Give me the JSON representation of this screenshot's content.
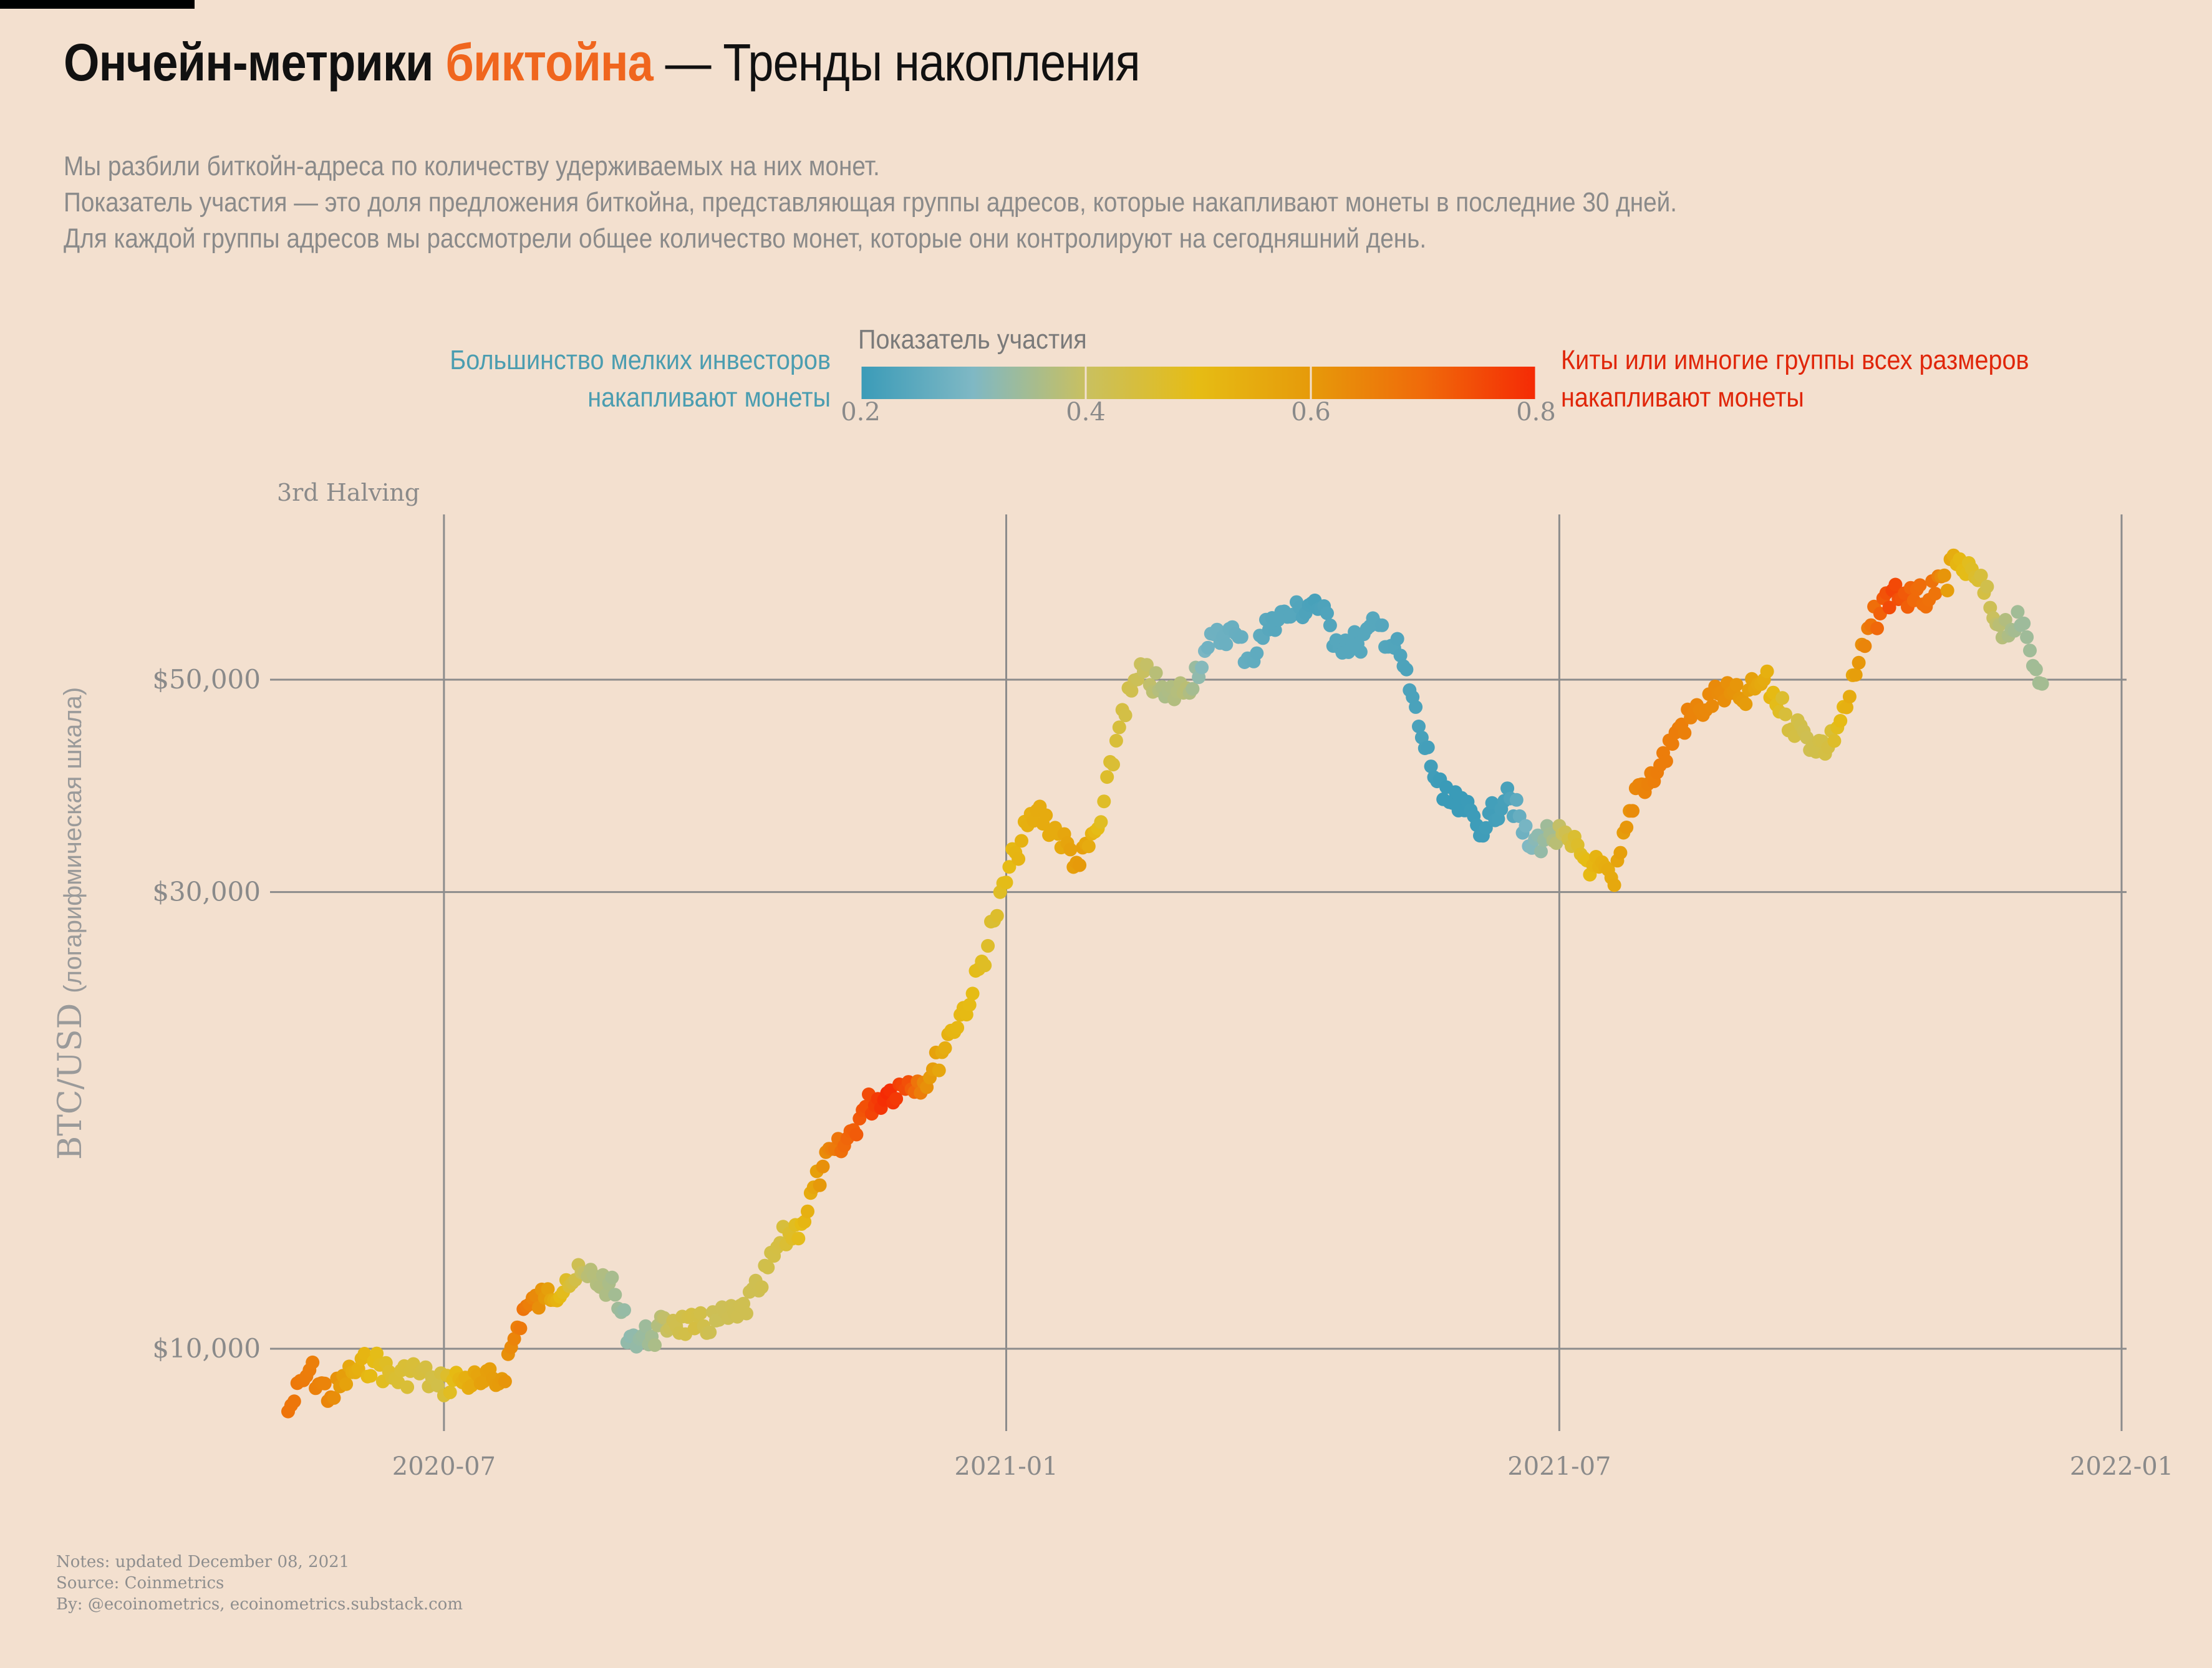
{
  "header": {
    "title_part1": "Ончейн-метрики ",
    "title_part2": "биктойна",
    "title_part3": " — Тренды накопления",
    "description": [
      "Мы разбили биткойн-адреса по количеству удерживаемых на них монет.",
      "Показатель участия — это доля предложения биткойна, представляющая группы адресов, которые накапливают монеты в последние 30 дней.",
      "Для каждой группы адресов мы рассмотрели общее количество монет, которые они контролируют на сегодняшний день."
    ]
  },
  "legend": {
    "title": "Показатель участия",
    "left_label": [
      "Большинство мелких инвесторов",
      "накапливают монеты"
    ],
    "right_label": [
      "Киты или имногие группы всех размеров",
      "накапливают монеты"
    ],
    "ticks": [
      "0.2",
      "0.4",
      "0.6",
      "0.8"
    ],
    "tick_values": [
      0.2,
      0.4,
      0.6,
      0.8
    ],
    "range": [
      0.2,
      0.8
    ],
    "colors": [
      "#3a9bb8",
      "#7fb8c4",
      "#c9c060",
      "#e6bc14",
      "#e69a0a",
      "#f06a0a",
      "#f52a05"
    ]
  },
  "chart_data": {
    "type": "scatter",
    "annotation": "3rd Halving",
    "xlabel": "",
    "ylabel": "BTC/USD",
    "ylabel_note": "(логарифмическая шкала)",
    "y_scale": "log",
    "ylim": [
      8700,
      70000
    ],
    "xlim": [
      "2020-05-11",
      "2022-01-01"
    ],
    "x_ticks": [
      "2020-07",
      "2021-01",
      "2021-07",
      "2022-01"
    ],
    "x_tick_dates": [
      "2020-07-01",
      "2021-01-01",
      "2021-07-01",
      "2022-01-01"
    ],
    "y_ticks": [
      "$10,000",
      "$30,000",
      "$50,000"
    ],
    "y_tick_values": [
      10000,
      30000,
      50000
    ],
    "grid": true,
    "color_scale": "participation",
    "points_format": [
      "date",
      "price_usd",
      "participation"
    ],
    "points": [
      [
        "2020-05-11",
        8600,
        0.68
      ],
      [
        "2020-05-18",
        9500,
        0.66
      ],
      [
        "2020-05-25",
        8900,
        0.64
      ],
      [
        "2020-06-01",
        9450,
        0.55
      ],
      [
        "2020-06-08",
        9700,
        0.5
      ],
      [
        "2020-06-15",
        9300,
        0.46
      ],
      [
        "2020-06-22",
        9500,
        0.45
      ],
      [
        "2020-06-29",
        9150,
        0.43
      ],
      [
        "2020-07-06",
        9300,
        0.52
      ],
      [
        "2020-07-13",
        9200,
        0.58
      ],
      [
        "2020-07-20",
        9300,
        0.6
      ],
      [
        "2020-07-27",
        11000,
        0.68
      ],
      [
        "2020-08-03",
        11300,
        0.6
      ],
      [
        "2020-08-10",
        11800,
        0.47
      ],
      [
        "2020-08-17",
        11900,
        0.38
      ],
      [
        "2020-08-24",
        11700,
        0.36
      ],
      [
        "2020-08-31",
        10300,
        0.32
      ],
      [
        "2020-09-07",
        10300,
        0.35
      ],
      [
        "2020-09-14",
        10700,
        0.42
      ],
      [
        "2020-09-21",
        10500,
        0.44
      ],
      [
        "2020-09-28",
        10700,
        0.41
      ],
      [
        "2020-10-05",
        10800,
        0.42
      ],
      [
        "2020-10-12",
        11500,
        0.42
      ],
      [
        "2020-10-19",
        12900,
        0.44
      ],
      [
        "2020-10-26",
        13500,
        0.5
      ],
      [
        "2020-11-02",
        15500,
        0.62
      ],
      [
        "2020-11-09",
        16300,
        0.7
      ],
      [
        "2020-11-16",
        17900,
        0.74
      ],
      [
        "2020-11-23",
        18500,
        0.8
      ],
      [
        "2020-11-30",
        19000,
        0.74
      ],
      [
        "2020-12-07",
        19200,
        0.6
      ],
      [
        "2020-12-14",
        21500,
        0.52
      ],
      [
        "2020-12-21",
        23500,
        0.5
      ],
      [
        "2020-12-28",
        28000,
        0.46
      ],
      [
        "2021-01-04",
        33000,
        0.52
      ],
      [
        "2021-01-11",
        36500,
        0.55
      ],
      [
        "2021-01-18",
        34500,
        0.55
      ],
      [
        "2021-01-25",
        32000,
        0.6
      ],
      [
        "2021-02-01",
        35500,
        0.48
      ],
      [
        "2021-02-08",
        46500,
        0.44
      ],
      [
        "2021-02-15",
        51000,
        0.4
      ],
      [
        "2021-02-22",
        48000,
        0.36
      ],
      [
        "2021-03-01",
        49000,
        0.38
      ],
      [
        "2021-03-08",
        54000,
        0.28
      ],
      [
        "2021-03-15",
        56500,
        0.27
      ],
      [
        "2021-03-22",
        52500,
        0.26
      ],
      [
        "2021-03-29",
        58000,
        0.24
      ],
      [
        "2021-04-05",
        58500,
        0.24
      ],
      [
        "2021-04-12",
        60500,
        0.22
      ],
      [
        "2021-04-19",
        55000,
        0.24
      ],
      [
        "2021-04-26",
        54500,
        0.24
      ],
      [
        "2021-05-03",
        57000,
        0.24
      ],
      [
        "2021-05-10",
        53000,
        0.23
      ],
      [
        "2021-05-17",
        43500,
        0.22
      ],
      [
        "2021-05-24",
        37500,
        0.2
      ],
      [
        "2021-05-31",
        36500,
        0.2
      ],
      [
        "2021-06-07",
        35000,
        0.21
      ],
      [
        "2021-06-14",
        38500,
        0.22
      ],
      [
        "2021-06-21",
        33500,
        0.3
      ],
      [
        "2021-06-28",
        34500,
        0.35
      ],
      [
        "2021-07-05",
        33500,
        0.45
      ],
      [
        "2021-07-12",
        32000,
        0.52
      ],
      [
        "2021-07-19",
        30500,
        0.56
      ],
      [
        "2021-07-26",
        38500,
        0.64
      ],
      [
        "2021-08-02",
        40000,
        0.66
      ],
      [
        "2021-08-09",
        44500,
        0.66
      ],
      [
        "2021-08-16",
        46500,
        0.64
      ],
      [
        "2021-08-23",
        48500,
        0.63
      ],
      [
        "2021-08-30",
        47500,
        0.6
      ],
      [
        "2021-09-06",
        50000,
        0.55
      ],
      [
        "2021-09-13",
        46000,
        0.45
      ],
      [
        "2021-09-20",
        43500,
        0.42
      ],
      [
        "2021-09-27",
        42500,
        0.44
      ],
      [
        "2021-10-04",
        48000,
        0.55
      ],
      [
        "2021-10-11",
        57000,
        0.68
      ],
      [
        "2021-10-18",
        62000,
        0.76
      ],
      [
        "2021-10-25",
        60500,
        0.7
      ],
      [
        "2021-11-01",
        61500,
        0.68
      ],
      [
        "2021-11-08",
        66000,
        0.52
      ],
      [
        "2021-11-15",
        63500,
        0.46
      ],
      [
        "2021-11-22",
        57000,
        0.38
      ],
      [
        "2021-11-29",
        57000,
        0.34
      ],
      [
        "2021-12-06",
        49500,
        0.35
      ]
    ]
  },
  "notes": {
    "line1": "Notes: updated December 08, 2021",
    "line2": "Source: Coinmetrics",
    "line3": "By: @ecoinometrics, ecoinometrics.substack.com"
  }
}
